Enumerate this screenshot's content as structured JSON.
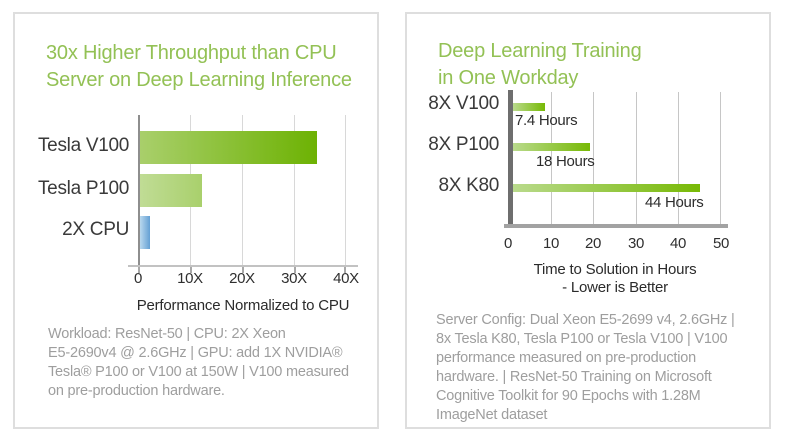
{
  "colors": {
    "title_green": "#93c155",
    "nvidia_green": "#76b900",
    "bar_light_green": "#b4d77f",
    "cpu_bar_blue": "#7fb2d9",
    "footnote_gray": "#9e9e9e",
    "axis_dark_gray": "#6e6e6e",
    "grid_gray": "#cccccc",
    "card_border_gray": "#dedede"
  },
  "chart_data": [
    {
      "type": "bar",
      "orientation": "horizontal",
      "title": "30x Higher Throughput than CPU Server on Deep Learning Inference",
      "title_lines": [
        "30x Higher Throughput than CPU",
        "Server on Deep Learning Inference"
      ],
      "categories": [
        "Tesla V100",
        "Tesla P100",
        "2X CPU"
      ],
      "values": [
        34,
        12,
        2
      ],
      "xlabel": "Performance Normalized to CPU",
      "xlim": [
        0,
        40
      ],
      "xticks": [
        "0",
        "10X",
        "20X",
        "30X",
        "40X"
      ],
      "grid": true,
      "legend": false,
      "footnote": "Workload: ResNet-50 | CPU: 2X Xeon\nE5-2690v4 @ 2.6GHz | GPU: add 1X NVIDIA®\nTesla® P100 or V100 at 150W | V100 measured\non pre-production hardware."
    },
    {
      "type": "bar",
      "orientation": "horizontal",
      "title": "Deep Learning Training in One Workday",
      "title_lines": [
        "Deep Learning Training",
        "in One Workday"
      ],
      "categories": [
        "8X V100",
        "8X P100",
        "8X K80"
      ],
      "values": [
        7.4,
        18,
        44
      ],
      "value_labels": [
        "7.4 Hours",
        "18 Hours",
        "44 Hours"
      ],
      "xlabel": "Time to Solution in Hours",
      "xlabel_sub": "- Lower is Better",
      "xlim": [
        0,
        50
      ],
      "xticks": [
        "0",
        "10",
        "20",
        "30",
        "40",
        "50"
      ],
      "grid": true,
      "legend": false,
      "footnote": "Server Config: Dual Xeon E5-2699 v4, 2.6GHz |\n8x Tesla K80, Tesla P100 or Tesla V100 | V100\nperformance measured on pre-production\nhardware. | ResNet-50 Training on Microsoft\nCognitive Toolkit for 90 Epochs with 1.28M\nImageNet dataset"
    }
  ]
}
